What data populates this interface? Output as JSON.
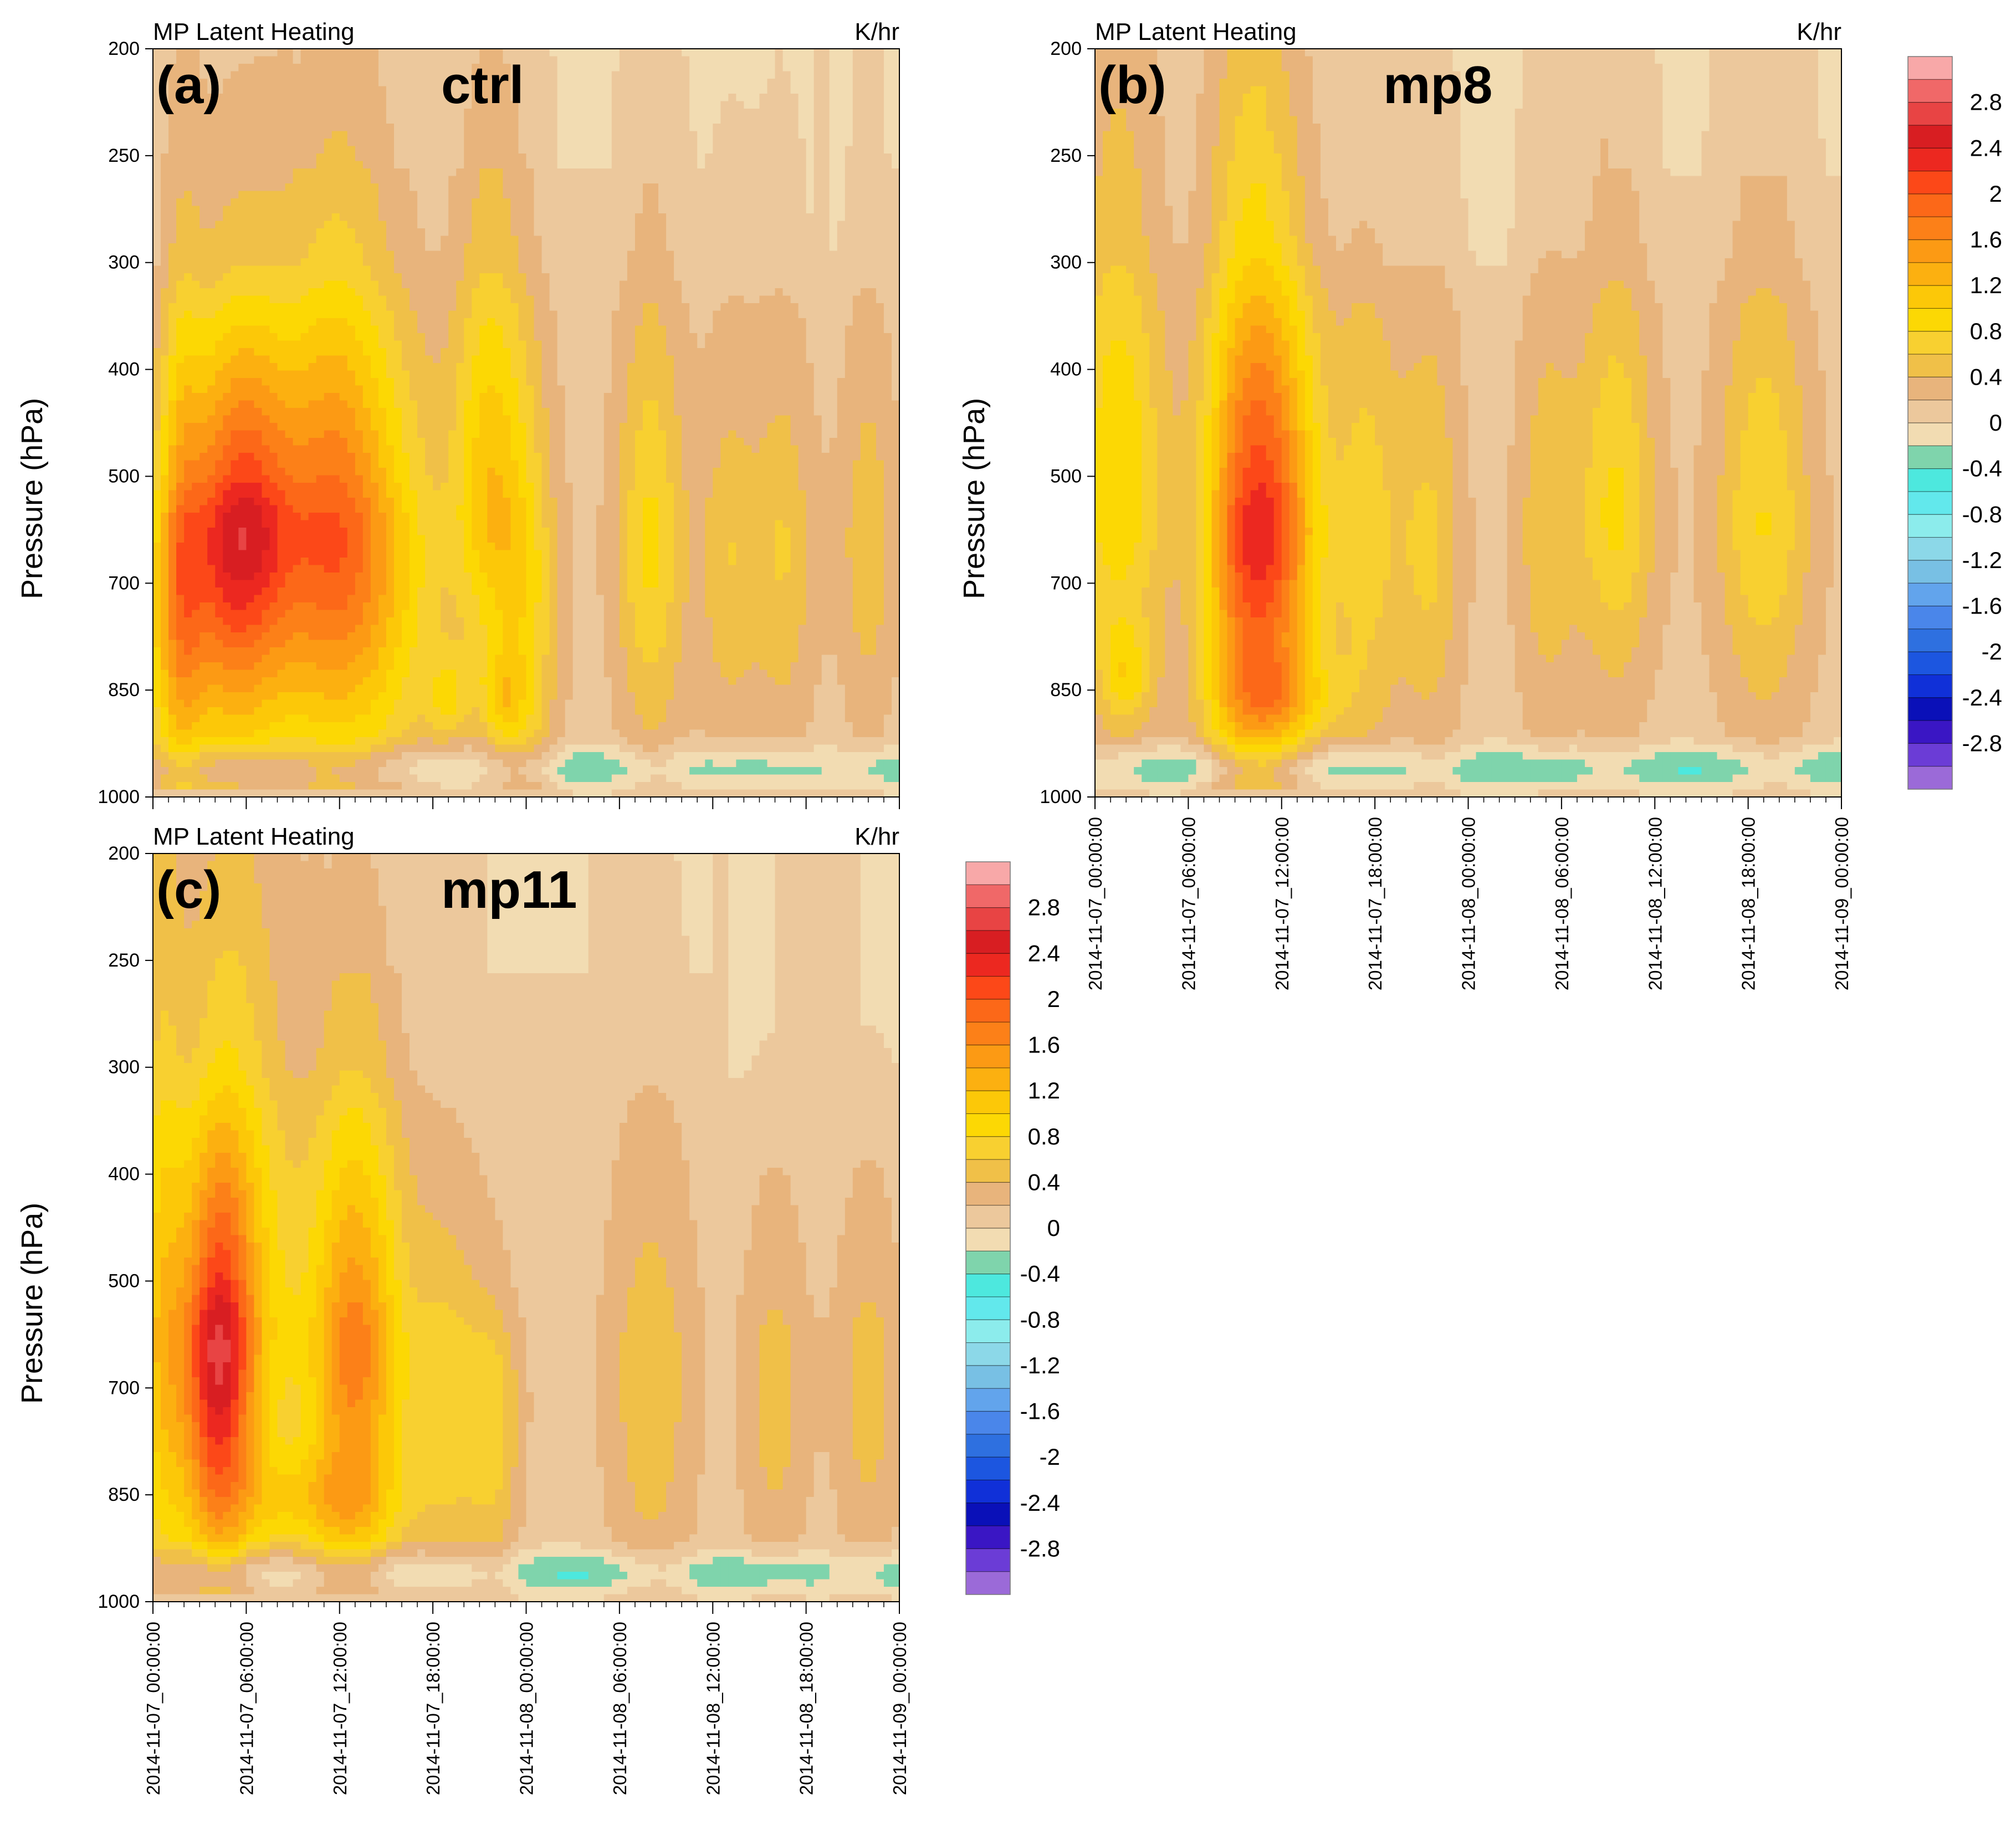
{
  "figure": {
    "colorbar_levels": [
      -3.0,
      -2.8,
      -2.6,
      -2.4,
      -2.2,
      -2.0,
      -1.8,
      -1.6,
      -1.4,
      -1.2,
      -1.0,
      -0.8,
      -0.6,
      -0.4,
      -0.2,
      0.0,
      0.2,
      0.4,
      0.6,
      0.8,
      1.0,
      1.2,
      1.4,
      1.6,
      1.8,
      2.0,
      2.2,
      2.4,
      2.6,
      2.8,
      3.0
    ],
    "colorbar_labels": [
      "2.8",
      "2.4",
      "2",
      "1.6",
      "1.2",
      "0.8",
      "0.4",
      "0",
      "-0.4",
      "-0.8",
      "-1.2",
      "-1.6",
      "-2",
      "-2.4",
      "-2.8"
    ],
    "colorbar_colors": [
      "#9b6ad8",
      "#6b3cd6",
      "#3a16c4",
      "#0a10b8",
      "#1030d8",
      "#1c56e0",
      "#2e70e0",
      "#4a86ea",
      "#62a4ec",
      "#78c0e4",
      "#8cd8e8",
      "#8cecec",
      "#62e8ec",
      "#4de8de",
      "#7fd4ac",
      "#f2dcb2",
      "#ecc89c",
      "#e8b47c",
      "#f0c048",
      "#f8d030",
      "#fcd804",
      "#fcc808",
      "#fcb010",
      "#fc9a14",
      "#fc8018",
      "#fc6818",
      "#fc4818",
      "#ec2820",
      "#d81e22",
      "#e84444",
      "#f06868",
      "#f8a8a8"
    ],
    "panel_title": "MP Latent Heating",
    "units": "K/hr",
    "y_axis_label": "Pressure (hPa)"
  },
  "chart_data": [
    {
      "type": "contour",
      "panel": "(a)",
      "label": "ctrl",
      "title": "MP Latent Heating",
      "units": "K/hr",
      "ylabel": "Pressure (hPa)",
      "y_ticks": [
        "200",
        "250",
        "300",
        "400",
        "500",
        "700",
        "850",
        "1000"
      ],
      "x_ticks": [
        "2014-11-07_00:00:00",
        "2014-11-07_06:00:00",
        "2014-11-07_12:00:00",
        "2014-11-07_18:00:00",
        "2014-11-08_00:00:00",
        "2014-11-08_06:00:00",
        "2014-11-08_12:00:00",
        "2014-11-08_18:00:00",
        "2014-11-09_00:00:00"
      ],
      "show_x_tick_labels": false,
      "x_range_hours": [
        0,
        48
      ],
      "y_range_hPa": [
        1000,
        200
      ],
      "features": [
        {
          "t": 5.5,
          "p": 580,
          "amp": 1.7,
          "st": 2.4,
          "sp": 170
        },
        {
          "t": 4.5,
          "p": 760,
          "amp": 0.9,
          "st": 5.0,
          "sp": 200
        },
        {
          "t": 12.0,
          "p": 600,
          "amp": 1.1,
          "st": 2.2,
          "sp": 230
        },
        {
          "t": 9.5,
          "p": 560,
          "amp": 0.5,
          "st": 2.5,
          "sp": 180
        },
        {
          "t": 15.5,
          "p": 660,
          "amp": 0.75,
          "st": 2.5,
          "sp": 230
        },
        {
          "t": 21.5,
          "p": 530,
          "amp": 0.95,
          "st": 1.6,
          "sp": 200
        },
        {
          "t": 24.0,
          "p": 720,
          "amp": 0.7,
          "st": 1.5,
          "sp": 250
        },
        {
          "t": 1.8,
          "p": 640,
          "amp": 0.8,
          "st": 1.0,
          "sp": 250
        },
        {
          "t": 32.0,
          "p": 620,
          "amp": 0.75,
          "st": 1.6,
          "sp": 220
        },
        {
          "t": 37.0,
          "p": 650,
          "amp": 0.45,
          "st": 1.3,
          "sp": 200
        },
        {
          "t": 40.5,
          "p": 640,
          "amp": 0.5,
          "st": 1.5,
          "sp": 200
        },
        {
          "t": 46.0,
          "p": 620,
          "amp": 0.45,
          "st": 1.3,
          "sp": 200
        },
        {
          "t": 19.0,
          "p": 860,
          "amp": 0.55,
          "st": 1.0,
          "sp": 45
        },
        {
          "t": 22.5,
          "p": 860,
          "amp": 0.55,
          "st": 1.0,
          "sp": 45
        }
      ],
      "top_negatives": [
        {
          "t0": 9.0,
          "t1": 28.5,
          "p1": 255
        },
        {
          "t0": 28.5,
          "t1": 40.0,
          "p1": 255
        },
        {
          "t0": 40.5,
          "t1": 42.5,
          "p1": 300
        },
        {
          "t0": 43.5,
          "t1": 45.0,
          "p1": 300
        },
        {
          "t0": 47.0,
          "t1": 48.0,
          "p1": 255
        }
      ],
      "positive_top_hPa": 300,
      "boundary_layer_min": -0.45
    },
    {
      "type": "contour",
      "panel": "(b)",
      "label": "mp8",
      "title": "MP Latent Heating",
      "units": "K/hr",
      "ylabel": "Pressure (hPa)",
      "y_ticks": [
        "200",
        "250",
        "300",
        "400",
        "500",
        "700",
        "850",
        "1000"
      ],
      "x_ticks": [
        "2014-11-07_00:00:00",
        "2014-11-07_06:00:00",
        "2014-11-07_12:00:00",
        "2014-11-07_18:00:00",
        "2014-11-08_00:00:00",
        "2014-11-08_06:00:00",
        "2014-11-08_12:00:00",
        "2014-11-08_18:00:00",
        "2014-11-09_00:00:00"
      ],
      "show_x_tick_labels": true,
      "x_range_hours": [
        0,
        48
      ],
      "y_range_hPa": [
        1000,
        200
      ],
      "features": [
        {
          "t": 1.5,
          "p": 520,
          "amp": 0.9,
          "st": 2.2,
          "sp": 230
        },
        {
          "t": 11.5,
          "p": 600,
          "amp": 1.75,
          "st": 2.2,
          "sp": 230
        },
        {
          "t": 9.0,
          "p": 620,
          "amp": 0.95,
          "st": 1.8,
          "sp": 260
        },
        {
          "t": 17.5,
          "p": 600,
          "amp": 0.6,
          "st": 1.5,
          "sp": 230
        },
        {
          "t": 21.5,
          "p": 620,
          "amp": 0.55,
          "st": 1.5,
          "sp": 220
        },
        {
          "t": 33.5,
          "p": 560,
          "amp": 0.75,
          "st": 1.8,
          "sp": 200
        },
        {
          "t": 43.0,
          "p": 580,
          "amp": 0.7,
          "st": 2.2,
          "sp": 220
        },
        {
          "t": 29.0,
          "p": 600,
          "amp": 0.45,
          "st": 1.4,
          "sp": 220
        },
        {
          "t": 12.0,
          "p": 860,
          "amp": 0.6,
          "st": 3.0,
          "sp": 45
        },
        {
          "t": 2.0,
          "p": 830,
          "amp": 0.55,
          "st": 1.2,
          "sp": 50
        }
      ],
      "top_negatives": [
        {
          "t0": 11.0,
          "t1": 27.0,
          "p1": 300
        },
        {
          "t0": 27.0,
          "t1": 31.0,
          "p1": 290
        },
        {
          "t0": 33.0,
          "t1": 36.0,
          "p1": 255
        },
        {
          "t0": 36.0,
          "t1": 48.0,
          "p1": 260
        }
      ],
      "positive_top_hPa": 300,
      "boundary_layer_min": -0.5
    },
    {
      "type": "contour",
      "panel": "(c)",
      "label": "mp11",
      "title": "MP Latent Heating",
      "units": "K/hr",
      "ylabel": "Pressure (hPa)",
      "y_ticks": [
        "200",
        "250",
        "300",
        "400",
        "500",
        "700",
        "850",
        "1000"
      ],
      "x_ticks": [
        "2014-11-07_00:00:00",
        "2014-11-07_06:00:00",
        "2014-11-07_12:00:00",
        "2014-11-07_18:00:00",
        "2014-11-08_00:00:00",
        "2014-11-08_06:00:00",
        "2014-11-08_12:00:00",
        "2014-11-08_18:00:00",
        "2014-11-09_00:00:00"
      ],
      "show_x_tick_labels": true,
      "x_range_hours": [
        0,
        48
      ],
      "y_range_hPa": [
        1000,
        200
      ],
      "features": [
        {
          "t": 4.0,
          "p": 650,
          "amp": 1.95,
          "st": 1.6,
          "sp": 200
        },
        {
          "t": 6.0,
          "p": 560,
          "amp": 0.9,
          "st": 2.4,
          "sp": 260
        },
        {
          "t": 13.0,
          "p": 630,
          "amp": 1.6,
          "st": 2.2,
          "sp": 230
        },
        {
          "t": 0.5,
          "p": 600,
          "amp": 0.95,
          "st": 1.2,
          "sp": 300
        },
        {
          "t": 19.0,
          "p": 700,
          "amp": 0.6,
          "st": 1.8,
          "sp": 200
        },
        {
          "t": 22.0,
          "p": 750,
          "amp": 0.5,
          "st": 1.2,
          "sp": 150
        },
        {
          "t": 32.0,
          "p": 680,
          "amp": 0.45,
          "st": 2.0,
          "sp": 250
        },
        {
          "t": 40.0,
          "p": 700,
          "amp": 0.4,
          "st": 1.5,
          "sp": 200
        },
        {
          "t": 46.0,
          "p": 690,
          "amp": 0.4,
          "st": 1.5,
          "sp": 200
        },
        {
          "t": 10.0,
          "p": 860,
          "amp": 0.6,
          "st": 4.0,
          "sp": 50
        }
      ],
      "top_negatives": [
        {
          "t0": 11.0,
          "t1": 16.5,
          "p1": 255
        },
        {
          "t0": 21.5,
          "t1": 23.0,
          "p1": 255
        },
        {
          "t0": 23.0,
          "t1": 28.0,
          "p1": 255
        },
        {
          "t0": 30.5,
          "t1": 36.0,
          "p1": 255
        },
        {
          "t0": 37.0,
          "t1": 40.0,
          "p1": 380
        },
        {
          "t0": 45.5,
          "t1": 48.0,
          "p1": 300
        }
      ],
      "positive_top_hPa": 300,
      "boundary_layer_min": -0.5
    }
  ]
}
